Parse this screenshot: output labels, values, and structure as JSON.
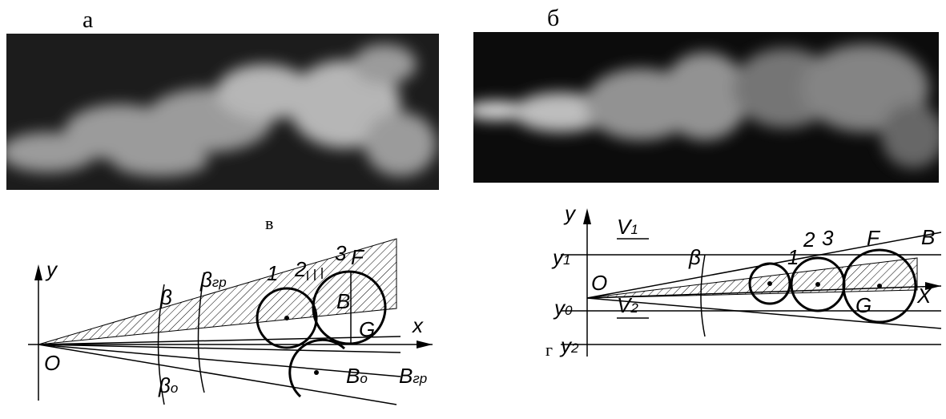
{
  "panels": {
    "a": "а",
    "b": "б",
    "c": "в",
    "d": "г"
  },
  "left_diagram": {
    "y": "y",
    "origin": "O",
    "x": "x",
    "beta": "β",
    "beta_gr": {
      "base": "β",
      "sub": "гр"
    },
    "beta_o": {
      "base": "β",
      "sub": "о"
    },
    "n1": "1",
    "n2": "2",
    "n3": "3",
    "F": "F",
    "B": "B",
    "G": "G",
    "B_o": {
      "base": "B",
      "sub": "о"
    },
    "B_gr": {
      "base": "B",
      "sub": "гр"
    }
  },
  "right_diagram": {
    "y": "y",
    "V1": {
      "base": "V",
      "sub": "1"
    },
    "y1": {
      "base": "y",
      "sub": "1"
    },
    "origin": "O",
    "beta": "β",
    "n1": "1",
    "n2": "2",
    "n3": "3",
    "F": "F",
    "B": "B",
    "y0": {
      "base": "y",
      "sub": "0"
    },
    "V2": {
      "base": "V",
      "sub": "2"
    },
    "X": "X",
    "G": "G",
    "y2": {
      "base": "y",
      "sub": "2"
    }
  }
}
